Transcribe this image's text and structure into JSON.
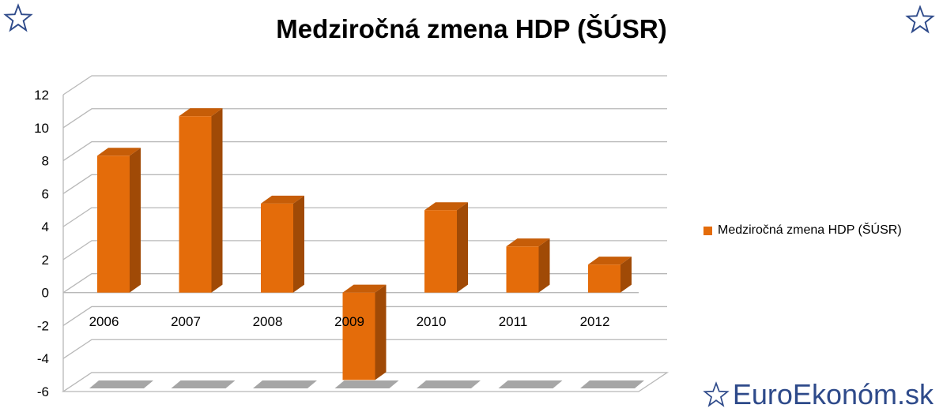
{
  "title": "Medziročná zmena HDP (ŠÚSR)",
  "brand": "EuroEkonóm.sk",
  "colors": {
    "bar": "#E46C0A",
    "bar_side": "#A04A06",
    "bar_top": "#C65D08",
    "brand": "#2e4a8a"
  },
  "icons": {
    "corner_left": "star-outline-icon",
    "corner_right": "star-outline-icon",
    "brand": "star-outline-icon"
  },
  "chart_data": {
    "type": "bar",
    "title": "Medziročná zmena HDP (ŠÚSR)",
    "categories": [
      "2006",
      "2007",
      "2008",
      "2009",
      "2010",
      "2011",
      "2012"
    ],
    "series": [
      {
        "name": "Medziročná zmena HDP (ŠÚSR)",
        "values": [
          8.3,
          10.7,
          5.4,
          -5.3,
          5.0,
          2.8,
          1.7
        ]
      }
    ],
    "y_ticks": [
      "12",
      "10",
      "8",
      "6",
      "4",
      "2",
      "0",
      "-2",
      "-4",
      "-6"
    ],
    "ylim": [
      -6,
      12
    ],
    "grid": true,
    "legend": "right",
    "style": "3d-column"
  }
}
